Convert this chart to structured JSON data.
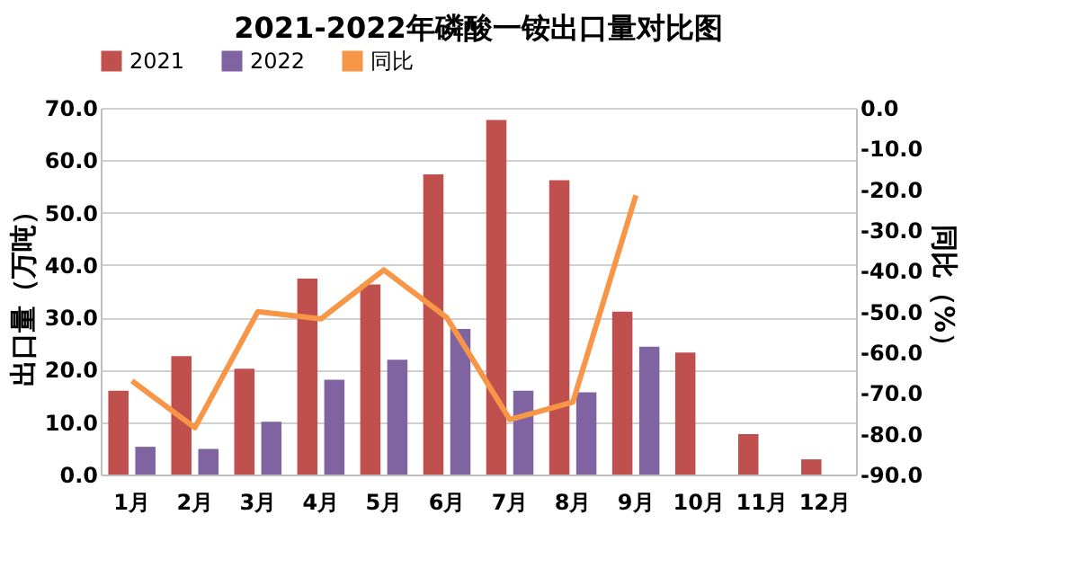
{
  "chart_data": {
    "type": "bar",
    "title": "2021-2022年磷酸一铵出口量对比图",
    "categories": [
      "1月",
      "2月",
      "3月",
      "4月",
      "5月",
      "6月",
      "7月",
      "8月",
      "9月",
      "10月",
      "11月",
      "12月"
    ],
    "series": [
      {
        "name": "2021",
        "color": "#c0504d",
        "values": [
          16.0,
          22.6,
          20.2,
          37.4,
          36.3,
          57.3,
          67.7,
          56.2,
          31.1,
          23.3,
          7.7,
          2.9
        ]
      },
      {
        "name": "2022",
        "color": "#8064a2",
        "values": [
          5.3,
          4.9,
          10.1,
          18.1,
          21.9,
          27.8,
          16.0,
          15.7,
          24.4,
          null,
          null,
          null
        ]
      },
      {
        "name": "同比",
        "type": "line",
        "axis": "y2",
        "color": "#f79646",
        "values": [
          -67,
          -78.5,
          -50,
          -51.8,
          -39.8,
          -51.5,
          -76.5,
          -72.2,
          -21.5,
          null,
          null,
          null
        ]
      }
    ],
    "ylabel": "出口量（万吨）",
    "y2label": "同比（%）",
    "ylim": [
      0,
      70
    ],
    "yticks": [
      {
        "value": 0,
        "label": "0.0"
      },
      {
        "value": 10,
        "label": "10.0"
      },
      {
        "value": 20,
        "label": "20.0"
      },
      {
        "value": 30,
        "label": "30.0"
      },
      {
        "value": 40,
        "label": "40.0"
      },
      {
        "value": 50,
        "label": "50.0"
      },
      {
        "value": 60,
        "label": "60.0"
      },
      {
        "value": 70,
        "label": "70.0"
      }
    ],
    "y2lim": [
      -90,
      0
    ],
    "y2ticks": [
      {
        "value": -90,
        "label": "-90.0"
      },
      {
        "value": -80,
        "label": "-80.0"
      },
      {
        "value": -70,
        "label": "-70.0"
      },
      {
        "value": -60,
        "label": "-60.0"
      },
      {
        "value": -50,
        "label": "-50.0"
      },
      {
        "value": -40,
        "label": "-40.0"
      },
      {
        "value": -30,
        "label": "-30.0"
      },
      {
        "value": -20,
        "label": "-20.0"
      },
      {
        "value": -10,
        "label": "-10.0"
      },
      {
        "value": 0,
        "label": "0.0"
      }
    ],
    "grid": "y",
    "legend": "top"
  }
}
